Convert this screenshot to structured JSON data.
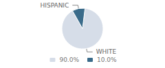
{
  "chart_data": {
    "type": "pie",
    "categories": [
      "WHITE",
      "HISPANIC"
    ],
    "values": [
      90.0,
      10.0
    ],
    "value_labels": [
      "90.0%",
      "10.0%"
    ],
    "colors": [
      "#d6dde8",
      "#3a6b8a"
    ],
    "legend": "bottom"
  }
}
